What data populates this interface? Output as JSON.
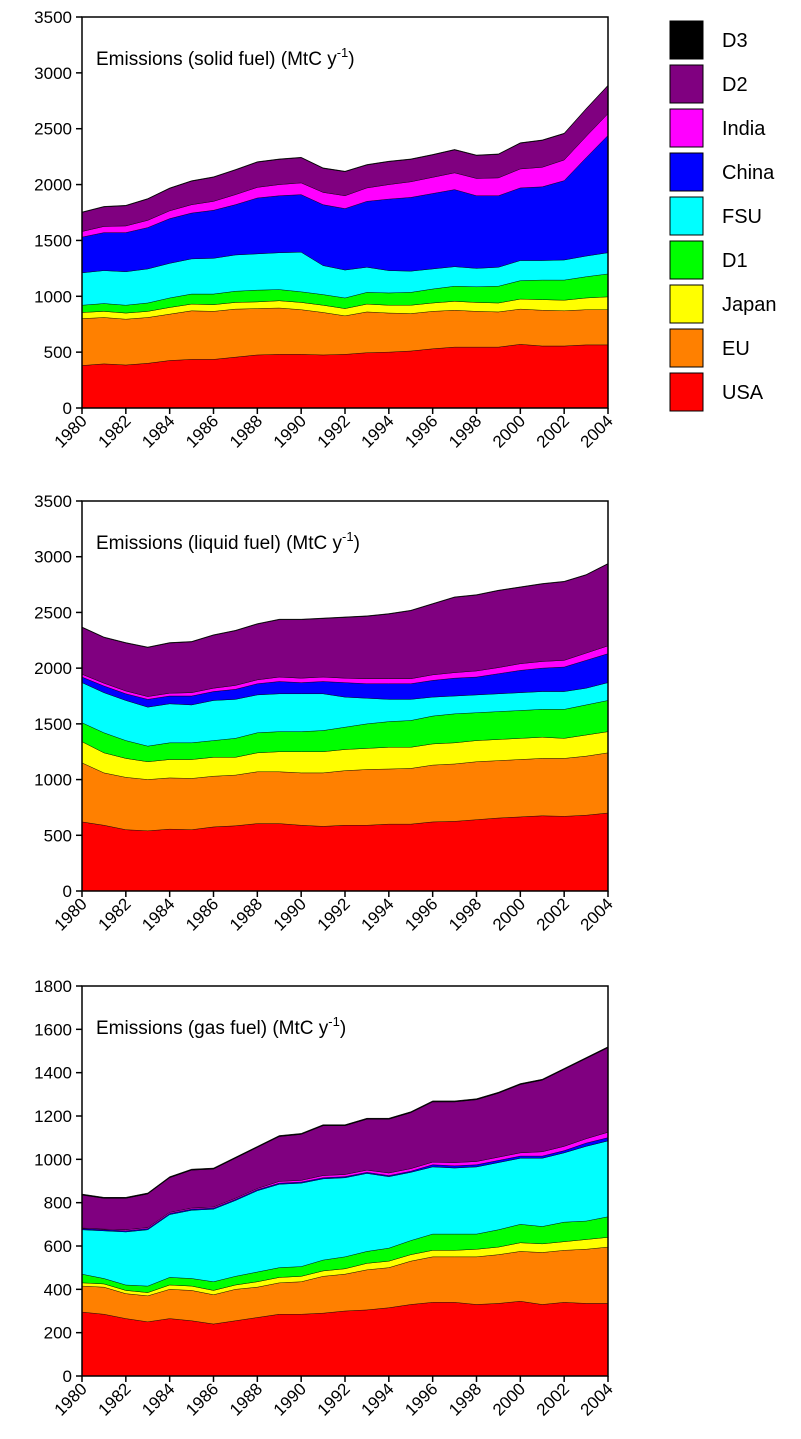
{
  "chart_data": [
    {
      "type": "stacked-area",
      "title": [
        "Emissions (solid fuel) (MtC y",
        "-1",
        ")"
      ],
      "legend": "right",
      "x": [
        1980,
        1981,
        1982,
        1983,
        1984,
        1985,
        1986,
        1987,
        1988,
        1989,
        1990,
        1991,
        1992,
        1993,
        1994,
        1995,
        1996,
        1997,
        1998,
        1999,
        2000,
        2001,
        2002,
        2003,
        2004
      ],
      "xlim": [
        1980,
        2004
      ],
      "xticks": [
        1980,
        1982,
        1984,
        1986,
        1988,
        1990,
        1992,
        1994,
        1996,
        1998,
        2000,
        2002,
        2004
      ],
      "ylim": [
        0,
        3500
      ],
      "yticks": [
        0,
        500,
        1000,
        1500,
        2000,
        2500,
        3000,
        3500
      ],
      "series": [
        {
          "name": "USA",
          "color": "#ff0000",
          "values": [
            380,
            395,
            385,
            400,
            425,
            435,
            435,
            455,
            475,
            480,
            480,
            475,
            480,
            495,
            500,
            510,
            530,
            545,
            545,
            545,
            570,
            555,
            555,
            565,
            565
          ]
        },
        {
          "name": "EU",
          "color": "#ff8000",
          "values": [
            420,
            415,
            410,
            410,
            415,
            435,
            430,
            430,
            415,
            415,
            400,
            380,
            345,
            365,
            350,
            335,
            335,
            330,
            320,
            315,
            315,
            320,
            315,
            315,
            315
          ]
        },
        {
          "name": "Japan",
          "color": "#ffff00",
          "values": [
            55,
            55,
            55,
            55,
            60,
            60,
            60,
            60,
            60,
            65,
            65,
            65,
            65,
            70,
            70,
            75,
            75,
            80,
            80,
            80,
            90,
            95,
            95,
            105,
            115
          ]
        },
        {
          "name": "D1",
          "color": "#00ff00",
          "values": [
            65,
            70,
            70,
            75,
            85,
            90,
            95,
            100,
            105,
            100,
            95,
            95,
            95,
            105,
            110,
            115,
            125,
            135,
            140,
            150,
            165,
            175,
            180,
            190,
            205
          ]
        },
        {
          "name": "FSU",
          "color": "#00ffff",
          "values": [
            290,
            295,
            300,
            305,
            310,
            315,
            320,
            325,
            325,
            330,
            355,
            260,
            250,
            225,
            200,
            190,
            180,
            175,
            165,
            170,
            180,
            175,
            180,
            185,
            190
          ]
        },
        {
          "name": "China",
          "color": "#0000ff",
          "values": [
            320,
            340,
            350,
            370,
            400,
            410,
            430,
            450,
            500,
            510,
            515,
            545,
            550,
            590,
            640,
            660,
            675,
            690,
            650,
            640,
            650,
            660,
            710,
            880,
            1050
          ]
        },
        {
          "name": "India",
          "color": "#ff00ff",
          "values": [
            50,
            55,
            60,
            65,
            70,
            75,
            80,
            90,
            95,
            100,
            105,
            110,
            115,
            120,
            130,
            140,
            145,
            150,
            155,
            160,
            170,
            175,
            185,
            190,
            195
          ]
        },
        {
          "name": "D2",
          "color": "#800080",
          "values": [
            170,
            175,
            180,
            190,
            200,
            210,
            215,
            220,
            225,
            225,
            225,
            215,
            215,
            205,
            205,
            200,
            200,
            205,
            205,
            210,
            230,
            240,
            235,
            245,
            250
          ]
        },
        {
          "name": "D3",
          "color": "#000000",
          "values": [
            5,
            5,
            5,
            5,
            5,
            5,
            5,
            5,
            5,
            5,
            5,
            5,
            5,
            5,
            5,
            5,
            5,
            5,
            5,
            5,
            5,
            5,
            5,
            5,
            5
          ]
        }
      ]
    },
    {
      "type": "stacked-area",
      "title": [
        "Emissions (liquid fuel) (MtC y",
        "-1",
        ")"
      ],
      "x": [
        1980,
        1981,
        1982,
        1983,
        1984,
        1985,
        1986,
        1987,
        1988,
        1989,
        1990,
        1991,
        1992,
        1993,
        1994,
        1995,
        1996,
        1997,
        1998,
        1999,
        2000,
        2001,
        2002,
        2003,
        2004
      ],
      "xlim": [
        1980,
        2004
      ],
      "xticks": [
        1980,
        1982,
        1984,
        1986,
        1988,
        1990,
        1992,
        1994,
        1996,
        1998,
        2000,
        2002,
        2004
      ],
      "ylim": [
        0,
        3500
      ],
      "yticks": [
        0,
        500,
        1000,
        1500,
        2000,
        2500,
        3000,
        3500
      ],
      "series": [
        {
          "name": "USA",
          "color": "#ff0000",
          "values": [
            620,
            590,
            550,
            540,
            555,
            550,
            575,
            585,
            605,
            605,
            590,
            580,
            590,
            590,
            600,
            600,
            620,
            625,
            640,
            655,
            665,
            675,
            670,
            680,
            700
          ]
        },
        {
          "name": "EU",
          "color": "#ff8000",
          "values": [
            530,
            470,
            470,
            460,
            460,
            460,
            455,
            455,
            465,
            465,
            470,
            480,
            490,
            500,
            495,
            500,
            510,
            515,
            520,
            515,
            515,
            515,
            520,
            530,
            540
          ]
        },
        {
          "name": "Japan",
          "color": "#ffff00",
          "values": [
            190,
            180,
            170,
            160,
            165,
            170,
            170,
            160,
            170,
            180,
            190,
            190,
            190,
            190,
            195,
            190,
            190,
            190,
            190,
            190,
            190,
            190,
            180,
            190,
            190
          ]
        },
        {
          "name": "D1",
          "color": "#00ff00",
          "values": [
            170,
            180,
            160,
            140,
            150,
            150,
            150,
            170,
            180,
            180,
            180,
            190,
            200,
            220,
            230,
            240,
            250,
            260,
            250,
            250,
            250,
            250,
            260,
            270,
            280
          ]
        },
        {
          "name": "FSU",
          "color": "#00ffff",
          "values": [
            360,
            360,
            360,
            350,
            350,
            340,
            360,
            350,
            340,
            340,
            340,
            330,
            270,
            230,
            200,
            190,
            170,
            160,
            160,
            160,
            160,
            160,
            160,
            150,
            160
          ]
        },
        {
          "name": "China",
          "color": "#0000ff",
          "values": [
            50,
            60,
            60,
            70,
            70,
            80,
            80,
            90,
            100,
            110,
            100,
            110,
            130,
            130,
            140,
            140,
            150,
            160,
            160,
            180,
            200,
            210,
            220,
            250,
            260
          ]
        },
        {
          "name": "India",
          "color": "#ff00ff",
          "values": [
            25,
            25,
            25,
            25,
            25,
            30,
            30,
            35,
            35,
            40,
            40,
            40,
            40,
            45,
            45,
            45,
            50,
            50,
            55,
            55,
            60,
            60,
            60,
            65,
            70
          ]
        },
        {
          "name": "D2",
          "color": "#800080",
          "values": [
            420,
            410,
            430,
            440,
            450,
            455,
            475,
            490,
            500,
            515,
            525,
            525,
            545,
            560,
            580,
            610,
            635,
            675,
            680,
            690,
            685,
            695,
            705,
            700,
            735
          ]
        },
        {
          "name": "D3",
          "color": "#000000",
          "values": [
            5,
            5,
            5,
            5,
            5,
            5,
            5,
            5,
            5,
            5,
            5,
            5,
            5,
            5,
            5,
            5,
            5,
            5,
            5,
            5,
            5,
            5,
            5,
            5,
            5
          ]
        }
      ]
    },
    {
      "type": "stacked-area",
      "title": [
        "Emissions (gas fuel) (MtC y",
        "-1",
        ")"
      ],
      "x": [
        1980,
        1981,
        1982,
        1983,
        1984,
        1985,
        1986,
        1987,
        1988,
        1989,
        1990,
        1991,
        1992,
        1993,
        1994,
        1995,
        1996,
        1997,
        1998,
        1999,
        2000,
        2001,
        2002,
        2003,
        2004
      ],
      "xlim": [
        1980,
        2004
      ],
      "xticks": [
        1980,
        1982,
        1984,
        1986,
        1988,
        1990,
        1992,
        1994,
        1996,
        1998,
        2000,
        2002,
        2004
      ],
      "ylim": [
        0,
        1800
      ],
      "yticks": [
        0,
        200,
        400,
        600,
        800,
        1000,
        1200,
        1400,
        1600,
        1800
      ],
      "series": [
        {
          "name": "USA",
          "color": "#ff0000",
          "values": [
            295,
            285,
            265,
            250,
            265,
            255,
            240,
            255,
            270,
            285,
            285,
            290,
            300,
            305,
            315,
            330,
            340,
            340,
            330,
            335,
            345,
            330,
            340,
            335,
            335
          ]
        },
        {
          "name": "EU",
          "color": "#ff8000",
          "values": [
            120,
            125,
            115,
            120,
            135,
            140,
            135,
            145,
            140,
            145,
            150,
            170,
            170,
            185,
            185,
            200,
            210,
            210,
            220,
            225,
            230,
            240,
            240,
            250,
            260
          ]
        },
        {
          "name": "Japan",
          "color": "#ffff00",
          "values": [
            15,
            15,
            15,
            15,
            20,
            20,
            20,
            20,
            25,
            25,
            25,
            25,
            25,
            30,
            30,
            30,
            30,
            30,
            35,
            35,
            40,
            40,
            40,
            45,
            45
          ]
        },
        {
          "name": "D1",
          "color": "#00ff00",
          "values": [
            40,
            25,
            25,
            30,
            35,
            35,
            40,
            40,
            45,
            45,
            45,
            50,
            55,
            55,
            60,
            65,
            75,
            75,
            70,
            80,
            85,
            80,
            90,
            85,
            95
          ]
        },
        {
          "name": "FSU",
          "color": "#00ffff",
          "values": [
            205,
            220,
            245,
            260,
            290,
            315,
            335,
            350,
            375,
            385,
            385,
            375,
            365,
            360,
            330,
            315,
            310,
            305,
            310,
            310,
            305,
            315,
            320,
            345,
            350
          ]
        },
        {
          "name": "China",
          "color": "#0000ff",
          "values": [
            5,
            5,
            5,
            5,
            5,
            5,
            5,
            5,
            5,
            5,
            5,
            5,
            5,
            5,
            5,
            5,
            10,
            10,
            10,
            10,
            10,
            10,
            10,
            15,
            15
          ]
        },
        {
          "name": "India",
          "color": "#ff00ff",
          "values": [
            3,
            3,
            5,
            5,
            5,
            5,
            5,
            5,
            5,
            8,
            8,
            10,
            10,
            10,
            12,
            12,
            12,
            15,
            15,
            15,
            15,
            20,
            20,
            20,
            25
          ]
        },
        {
          "name": "D2",
          "color": "#800080",
          "values": [
            152,
            142,
            145,
            155,
            160,
            175,
            175,
            185,
            190,
            207,
            212,
            230,
            225,
            235,
            248,
            258,
            278,
            280,
            285,
            295,
            315,
            330,
            355,
            370,
            390
          ]
        },
        {
          "name": "D3",
          "color": "#000000",
          "values": [
            5,
            5,
            5,
            5,
            5,
            5,
            5,
            5,
            5,
            5,
            5,
            5,
            5,
            5,
            5,
            5,
            5,
            5,
            5,
            5,
            5,
            5,
            5,
            5,
            5
          ]
        }
      ]
    }
  ]
}
